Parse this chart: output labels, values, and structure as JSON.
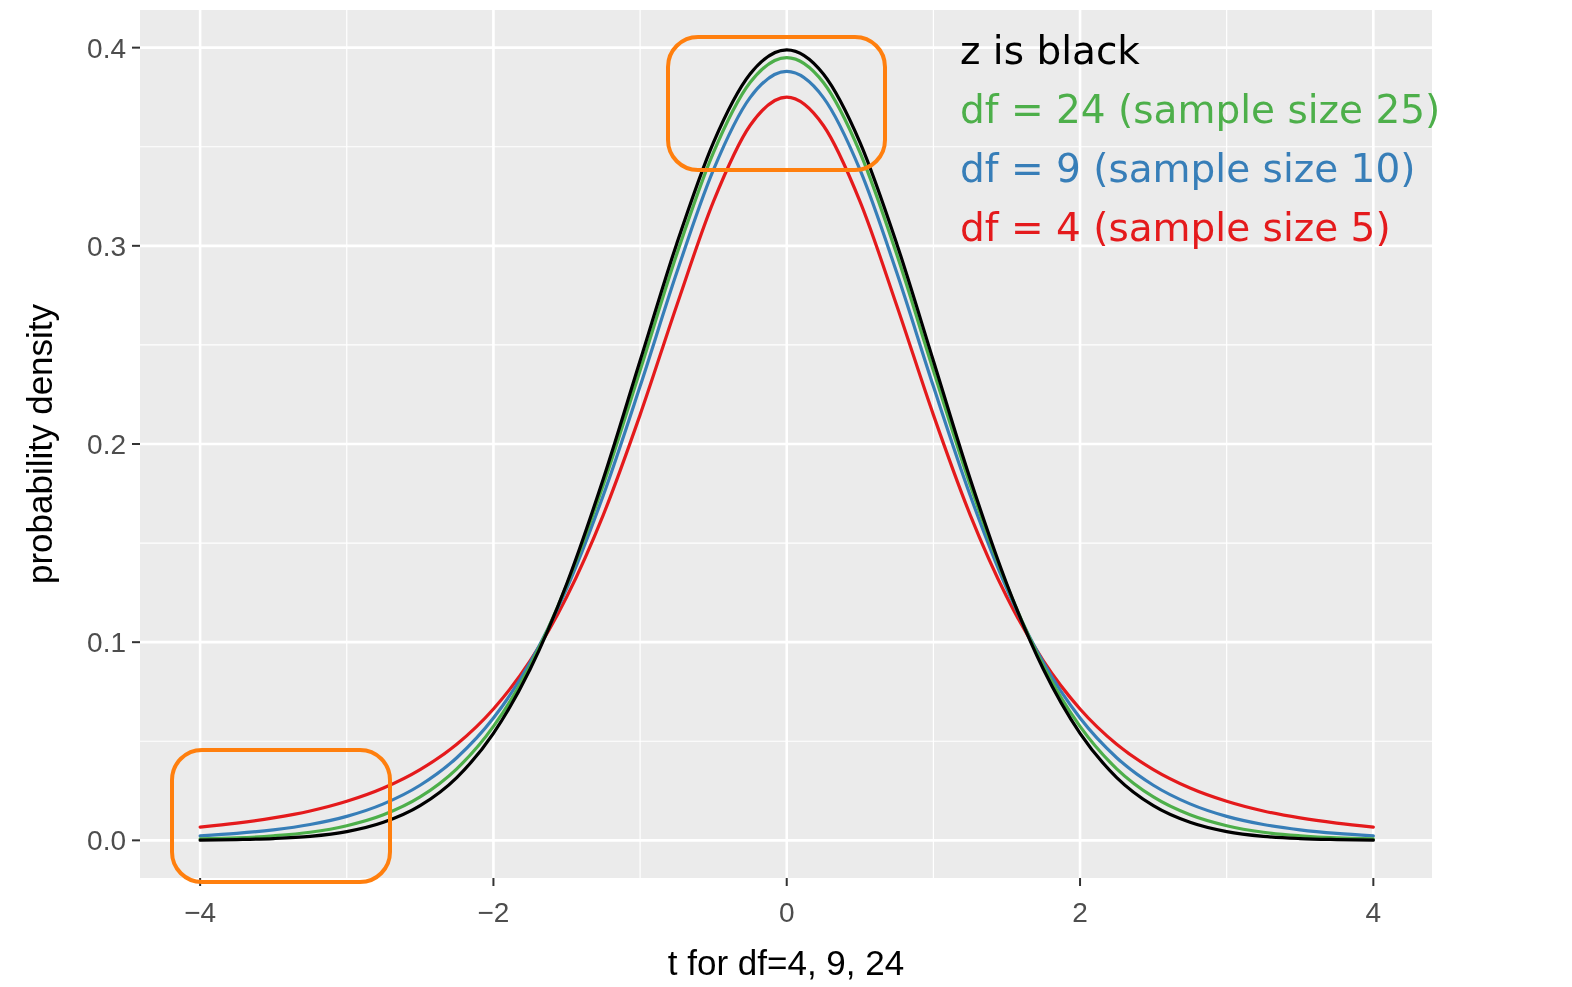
{
  "chart_data": {
    "type": "line",
    "xlabel": "t for df=4, 9, 24",
    "ylabel": "probability density",
    "x": [
      -4,
      -3.75,
      -3.5,
      -3.25,
      -3,
      -2.75,
      -2.5,
      -2.25,
      -2,
      -1.75,
      -1.5,
      -1.25,
      -1,
      -0.75,
      -0.5,
      -0.25,
      0,
      0.25,
      0.5,
      0.75,
      1,
      1.25,
      1.5,
      1.75,
      2,
      2.25,
      2.5,
      2.75,
      3,
      3.25,
      3.5,
      3.75,
      4
    ],
    "series": [
      {
        "name": "z is black",
        "color": "#000000",
        "values": [
          0.0001,
          0.0004,
          0.0009,
          0.002,
          0.0044,
          0.0091,
          0.0175,
          0.0317,
          0.054,
          0.0863,
          0.1295,
          0.1826,
          0.242,
          0.3011,
          0.3521,
          0.3867,
          0.3989,
          0.3867,
          0.3521,
          0.3011,
          0.242,
          0.1826,
          0.1295,
          0.0863,
          0.054,
          0.0317,
          0.0175,
          0.0091,
          0.0044,
          0.002,
          0.0009,
          0.0004,
          0.0001
        ]
      },
      {
        "name": "df = 24 (sample size 25)",
        "color": "#4daf4a",
        "values": [
          0.0007,
          0.0012,
          0.0023,
          0.0041,
          0.0074,
          0.0129,
          0.0219,
          0.0361,
          0.0575,
          0.088,
          0.1289,
          0.1796,
          0.2371,
          0.2957,
          0.347,
          0.3824,
          0.395,
          0.3824,
          0.347,
          0.2957,
          0.2371,
          0.1796,
          0.1289,
          0.088,
          0.0575,
          0.0361,
          0.0219,
          0.0129,
          0.0074,
          0.0041,
          0.0023,
          0.0012,
          0.0007
        ]
      },
      {
        "name": "df = 9 (sample size 10)",
        "color": "#377eb8",
        "values": [
          0.0023,
          0.0035,
          0.0053,
          0.008,
          0.0121,
          0.0184,
          0.0278,
          0.0417,
          0.0617,
          0.0897,
          0.1271,
          0.1743,
          0.2291,
          0.2865,
          0.3383,
          0.3748,
          0.388,
          0.3748,
          0.3383,
          0.2865,
          0.2291,
          0.1743,
          0.1271,
          0.0897,
          0.0617,
          0.0417,
          0.0278,
          0.0184,
          0.0121,
          0.008,
          0.0053,
          0.0035,
          0.0023
        ]
      },
      {
        "name": "df = 4 (sample size 5)",
        "color": "#e41a1c",
        "values": [
          0.0067,
          0.0087,
          0.0113,
          0.0148,
          0.0197,
          0.0264,
          0.0357,
          0.0485,
          0.0663,
          0.0905,
          0.1229,
          0.1644,
          0.2147,
          0.2699,
          0.3223,
          0.3607,
          0.375,
          0.3607,
          0.3223,
          0.2699,
          0.2147,
          0.1644,
          0.1229,
          0.0905,
          0.0663,
          0.0485,
          0.0357,
          0.0264,
          0.0197,
          0.0148,
          0.0113,
          0.0087,
          0.0067
        ]
      }
    ],
    "xlim": [
      -4.41,
      4.4
    ],
    "ylim": [
      -0.019,
      0.419
    ],
    "xticks": [
      {
        "value": -4,
        "label": "−4"
      },
      {
        "value": -2,
        "label": "−2"
      },
      0,
      2,
      4
    ],
    "yticks": [
      {
        "value": 0,
        "label": "0.0"
      },
      0.1,
      0.2,
      0.3,
      0.4
    ],
    "grid": true,
    "legend": "top right",
    "line_style": "solid",
    "marker": "none"
  }
}
